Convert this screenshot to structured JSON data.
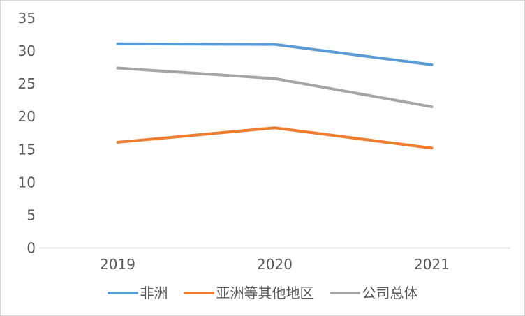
{
  "chart_data": {
    "type": "line",
    "title": "",
    "categories": [
      "2019",
      "2020",
      "2021"
    ],
    "series": [
      {
        "name": "非洲",
        "color": "#5B9BD5",
        "values": [
          31.1,
          31.0,
          27.9
        ]
      },
      {
        "name": "亚洲等其他地区",
        "color": "#ED7D31",
        "values": [
          16.1,
          18.3,
          15.2
        ]
      },
      {
        "name": "公司总体",
        "color": "#A5A5A5",
        "values": [
          27.4,
          25.8,
          21.5
        ]
      }
    ],
    "ylim": [
      0,
      35
    ],
    "ytick_step": 5,
    "ytick_labels": [
      "0",
      "5",
      "10",
      "15",
      "20",
      "25",
      "30",
      "35"
    ],
    "grid": false,
    "legend_position": "bottom",
    "axis_color": "#D9D9D9",
    "label_color": "#595959",
    "background_color": "#FFFFFF"
  }
}
